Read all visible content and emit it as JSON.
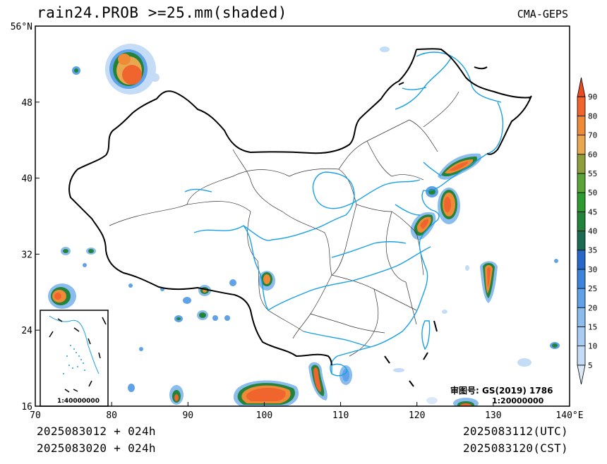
{
  "title": "rain24.PROB  >=25.mm(shaded)",
  "source": "CMA-GEPS",
  "lat_ticks": [
    "56°N",
    "48",
    "40",
    "32",
    "24",
    "16"
  ],
  "lat_values": [
    56,
    48,
    40,
    32,
    24,
    16
  ],
  "lon_ticks": [
    "70",
    "80",
    "90",
    "100",
    "110",
    "120",
    "130",
    "140°E"
  ],
  "lon_values": [
    70,
    80,
    90,
    100,
    110,
    120,
    130,
    140
  ],
  "colorbar": {
    "levels": [
      "5",
      "10",
      "15",
      "20",
      "25",
      "30",
      "35",
      "40",
      "45",
      "50",
      "55",
      "60",
      "70",
      "80",
      "90"
    ],
    "colors": [
      "#dbe8f8",
      "#c4dcf5",
      "#a9cdf2",
      "#8abcee",
      "#5fa2e8",
      "#3d85dc",
      "#2768c8",
      "#1b6b52",
      "#23833a",
      "#2f9a2f",
      "#5aa43a",
      "#8e9e3c",
      "#e7a850",
      "#ef8a36",
      "#f0652e",
      "#e94b22"
    ]
  },
  "approval": "审图号: GS(2019) 1786",
  "scale_main": "1:20000000",
  "scale_inset": "1:40000000",
  "footer": {
    "init_utc": "2025083012 + 024h",
    "init_cst": "2025083020 + 024h",
    "valid_utc": "2025083112(UTC)",
    "valid_cst": "2025083120(CST)"
  }
}
